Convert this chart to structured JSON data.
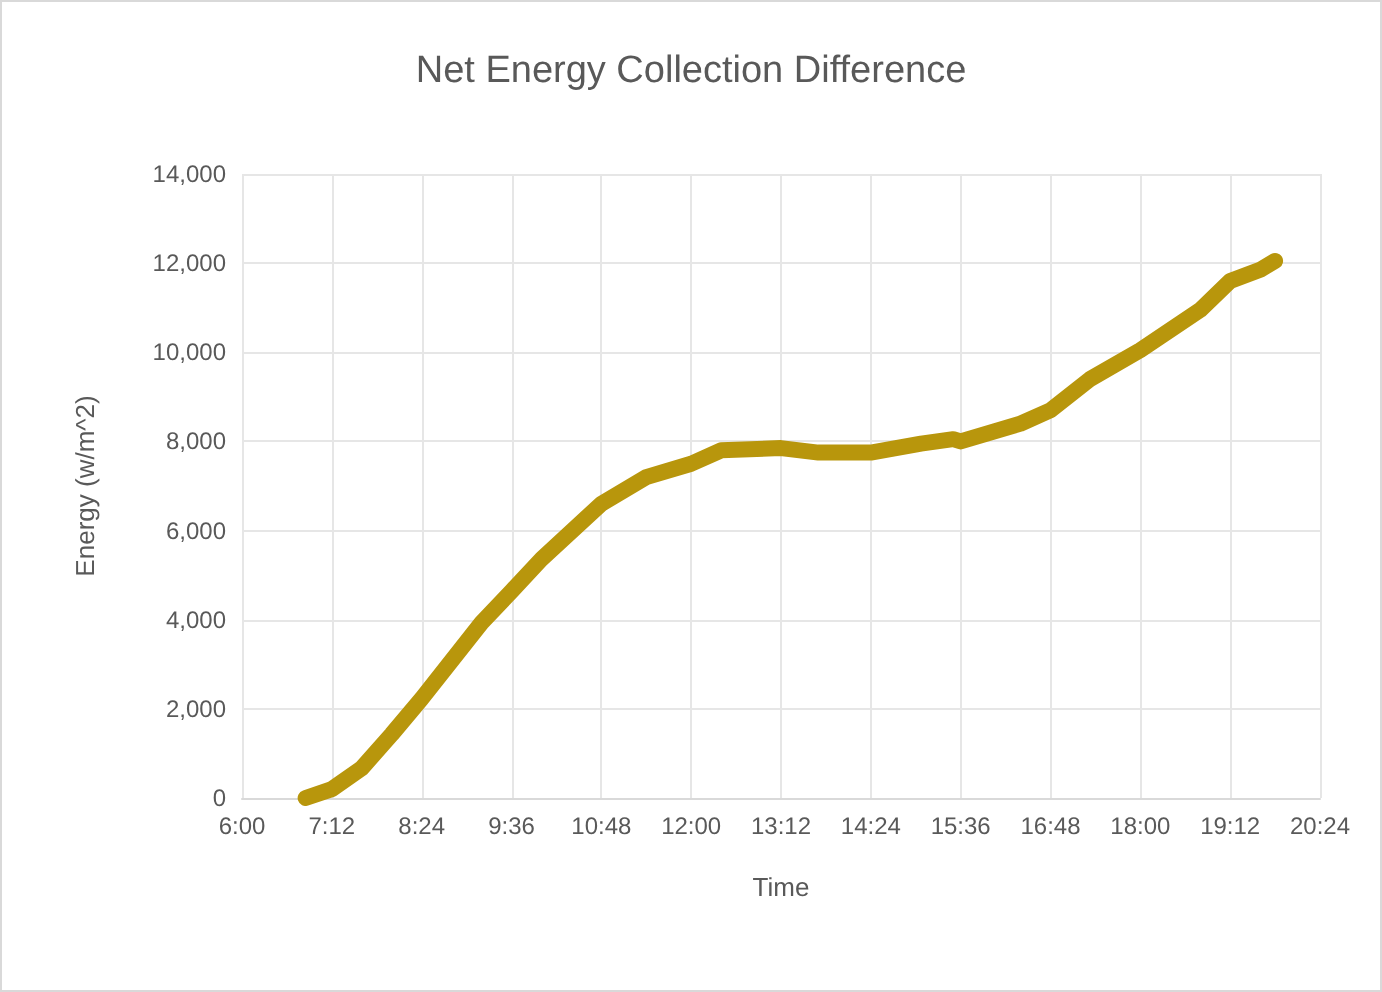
{
  "chart_data": {
    "type": "line",
    "title": "Net Energy Collection Difference",
    "xlabel": "Time",
    "ylabel": "Energy (w/m^2)",
    "x": [
      6.85,
      7.2,
      7.6,
      8.0,
      8.4,
      9.2,
      9.6,
      10.0,
      10.8,
      11.4,
      12.0,
      12.4,
      13.2,
      13.7,
      14.4,
      15.07,
      15.5,
      15.6,
      16.4,
      16.8,
      17.33,
      18.0,
      18.8,
      19.2,
      19.6,
      19.8
    ],
    "series": [
      {
        "color": "#b8960c",
        "values": [
          0,
          200,
          670,
          1430,
          2230,
          3930,
          4640,
          5360,
          6600,
          7200,
          7500,
          7800,
          7850,
          7750,
          7750,
          7950,
          8050,
          8000,
          8400,
          8700,
          9400,
          10050,
          10950,
          11600,
          11850,
          12050
        ]
      }
    ],
    "xlim": [
      6,
      20.4
    ],
    "xticks": [
      {
        "value": 6,
        "label": "6:00"
      },
      {
        "value": 7.2,
        "label": "7:12"
      },
      {
        "value": 8.4,
        "label": "8:24"
      },
      {
        "value": 9.6,
        "label": "9:36"
      },
      {
        "value": 10.8,
        "label": "10:48"
      },
      {
        "value": 12,
        "label": "12:00"
      },
      {
        "value": 13.2,
        "label": "13:12"
      },
      {
        "value": 14.4,
        "label": "14:24"
      },
      {
        "value": 15.6,
        "label": "15:36"
      },
      {
        "value": 16.8,
        "label": "16:48"
      },
      {
        "value": 18,
        "label": "18:00"
      },
      {
        "value": 19.2,
        "label": "19:12"
      },
      {
        "value": 20.4,
        "label": "20:24"
      }
    ],
    "ylim": [
      0,
      14000
    ],
    "yticks": [
      0,
      {
        "value": 2000,
        "label": "2,000"
      },
      {
        "value": 4000,
        "label": "4,000"
      },
      {
        "value": 6000,
        "label": "6,000"
      },
      {
        "value": 8000,
        "label": "8,000"
      },
      {
        "value": 10000,
        "label": "10,000"
      },
      {
        "value": 12000,
        "label": "12,000"
      },
      {
        "value": 14000,
        "label": "14,000"
      }
    ],
    "grid": true,
    "line_style": "solid"
  }
}
